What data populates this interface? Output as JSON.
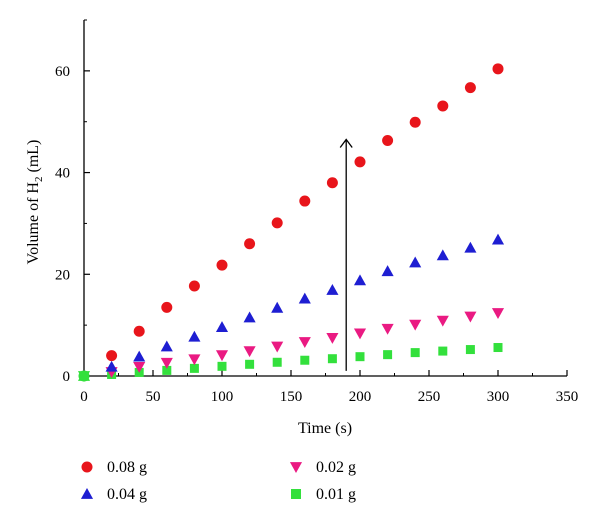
{
  "chart_data": {
    "type": "scatter",
    "xlabel": "Time (s)",
    "ylabel_main": "Volume of H",
    "ylabel_sub": "2",
    "ylabel_unit": " (mL)",
    "xlim": [
      0,
      350
    ],
    "ylim": [
      0,
      70
    ],
    "x_ticks": [
      0,
      50,
      100,
      150,
      200,
      250,
      300,
      350
    ],
    "y_ticks": [
      0,
      20,
      40,
      60
    ],
    "grid": false,
    "legend_position": "bottom",
    "annotation": "upward arrow at x=190 spanning series, indicating increase with catalyst amount",
    "series": [
      {
        "name": "0.08 g",
        "marker": "circle",
        "color": "#e8151b",
        "x": [
          0,
          20,
          40,
          60,
          80,
          100,
          120,
          140,
          160,
          180,
          200,
          220,
          240,
          260,
          280,
          300
        ],
        "y": [
          0,
          4.0,
          8.8,
          13.5,
          17.7,
          21.8,
          26.0,
          30.1,
          34.4,
          38.0,
          42.1,
          46.3,
          49.9,
          53.1,
          56.7,
          60.4
        ]
      },
      {
        "name": "0.04 g",
        "marker": "triangle-up",
        "color": "#1e1ed2",
        "x": [
          0,
          20,
          40,
          60,
          80,
          100,
          120,
          140,
          160,
          180,
          200,
          220,
          240,
          260,
          280,
          300
        ],
        "y": [
          0,
          1.8,
          3.8,
          5.8,
          7.7,
          9.6,
          11.5,
          13.4,
          15.2,
          16.9,
          18.8,
          20.6,
          22.3,
          23.7,
          25.2,
          26.8
        ]
      },
      {
        "name": "0.02 g",
        "marker": "triangle-down",
        "color": "#ea1a82",
        "x": [
          0,
          20,
          40,
          60,
          80,
          100,
          120,
          140,
          160,
          180,
          200,
          220,
          240,
          260,
          280,
          300
        ],
        "y": [
          0,
          0.8,
          1.8,
          2.6,
          3.3,
          4.1,
          4.9,
          5.8,
          6.7,
          7.5,
          8.4,
          9.3,
          10.1,
          10.9,
          11.7,
          12.4
        ]
      },
      {
        "name": "0.01 g",
        "marker": "square",
        "color": "#33e03c",
        "x": [
          0,
          20,
          40,
          60,
          80,
          100,
          120,
          140,
          160,
          180,
          200,
          220,
          240,
          260,
          280,
          300
        ],
        "y": [
          0,
          0.3,
          0.7,
          1.1,
          1.5,
          1.9,
          2.3,
          2.7,
          3.1,
          3.4,
          3.8,
          4.2,
          4.6,
          4.9,
          5.2,
          5.6
        ]
      }
    ]
  }
}
